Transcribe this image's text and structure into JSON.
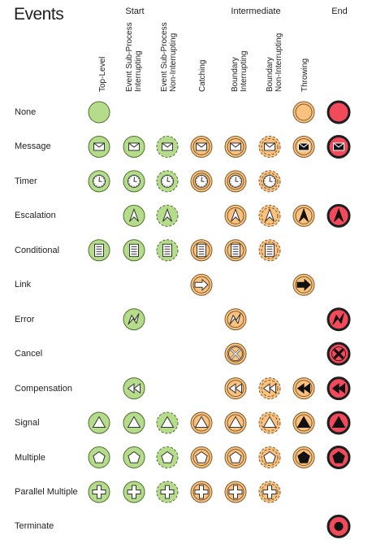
{
  "title": "Events",
  "groups": [
    {
      "id": "start",
      "label": "Start"
    },
    {
      "id": "intermediate",
      "label": "Intermediate"
    },
    {
      "id": "end",
      "label": "End"
    }
  ],
  "columns": [
    {
      "id": "top-level",
      "label": "Top-Level",
      "group": "start"
    },
    {
      "id": "esp-interrupting",
      "label": "Event Sub-Process\nInterrupting",
      "group": "start"
    },
    {
      "id": "esp-non-interrupting",
      "label": "Event Sub-Process\nNon-Interrupting",
      "group": "start"
    },
    {
      "id": "catching",
      "label": "Catching",
      "group": "intermediate"
    },
    {
      "id": "boundary-interrupting",
      "label": "Boundary\nInterrupting",
      "group": "intermediate"
    },
    {
      "id": "boundary-non-interrupting",
      "label": "Boundary\nNon-Interrupting",
      "group": "intermediate"
    },
    {
      "id": "throwing",
      "label": "Throwing",
      "group": "intermediate"
    },
    {
      "id": "end",
      "label": "",
      "group": "end"
    }
  ],
  "column_styles": {
    "top-level": "start",
    "esp-interrupting": "start",
    "esp-non-interrupting": "start-dashed",
    "catching": "intermediate",
    "boundary-interrupting": "intermediate",
    "boundary-non-interrupting": "intermediate-dashed",
    "throwing": "intermediate",
    "end": "end"
  },
  "rows": [
    {
      "label": "None",
      "marker": "none",
      "cols": [
        "top-level",
        "throwing",
        "end"
      ]
    },
    {
      "label": "Message",
      "marker": "envelope-icon",
      "cols": [
        "top-level",
        "esp-interrupting",
        "esp-non-interrupting",
        "catching",
        "boundary-interrupting",
        "boundary-non-interrupting",
        "throwing",
        "end"
      ]
    },
    {
      "label": "Timer",
      "marker": "clock-icon",
      "cols": [
        "top-level",
        "esp-interrupting",
        "esp-non-interrupting",
        "catching",
        "boundary-interrupting",
        "boundary-non-interrupting"
      ]
    },
    {
      "label": "Escalation",
      "marker": "escalation-arrow-icon",
      "cols": [
        "esp-interrupting",
        "esp-non-interrupting",
        "boundary-interrupting",
        "boundary-non-interrupting",
        "throwing",
        "end"
      ]
    },
    {
      "label": "Conditional",
      "marker": "document-lines-icon",
      "cols": [
        "top-level",
        "esp-interrupting",
        "esp-non-interrupting",
        "catching",
        "boundary-interrupting",
        "boundary-non-interrupting"
      ]
    },
    {
      "label": "Link",
      "marker": "link-arrow-icon",
      "cols": [
        "catching",
        "throwing"
      ]
    },
    {
      "label": "Error",
      "marker": "lightning-icon",
      "cols": [
        "esp-interrupting",
        "boundary-interrupting",
        "end"
      ]
    },
    {
      "label": "Cancel",
      "marker": "x-icon",
      "cols": [
        "boundary-interrupting",
        "end"
      ]
    },
    {
      "label": "Compensation",
      "marker": "rewind-icon",
      "cols": [
        "esp-interrupting",
        "boundary-interrupting",
        "boundary-non-interrupting",
        "throwing",
        "end"
      ]
    },
    {
      "label": "Signal",
      "marker": "triangle-icon",
      "cols": [
        "top-level",
        "esp-interrupting",
        "esp-non-interrupting",
        "catching",
        "boundary-interrupting",
        "boundary-non-interrupting",
        "throwing",
        "end"
      ]
    },
    {
      "label": "Multiple",
      "marker": "pentagon-icon",
      "cols": [
        "top-level",
        "esp-interrupting",
        "esp-non-interrupting",
        "catching",
        "boundary-interrupting",
        "boundary-non-interrupting",
        "throwing",
        "end"
      ]
    },
    {
      "label": "Parallel Multiple",
      "marker": "plus-icon",
      "cols": [
        "top-level",
        "esp-interrupting",
        "esp-non-interrupting",
        "catching",
        "boundary-interrupting",
        "boundary-non-interrupting"
      ]
    },
    {
      "label": "Terminate",
      "marker": "filled-circle-icon",
      "cols": [
        "end"
      ]
    }
  ],
  "colors": {
    "start_fill": "#b5dc8a",
    "start_stroke": "#4e6e2e",
    "intermediate_fill": "#fbc27f",
    "intermediate_stroke": "#7a5a2c",
    "end_fill": "#f24a5a",
    "end_stroke": "#1e1e1e",
    "marker_fill": "#ffffff",
    "marker_stroke": "#333333",
    "marker_dark": "#111111"
  }
}
